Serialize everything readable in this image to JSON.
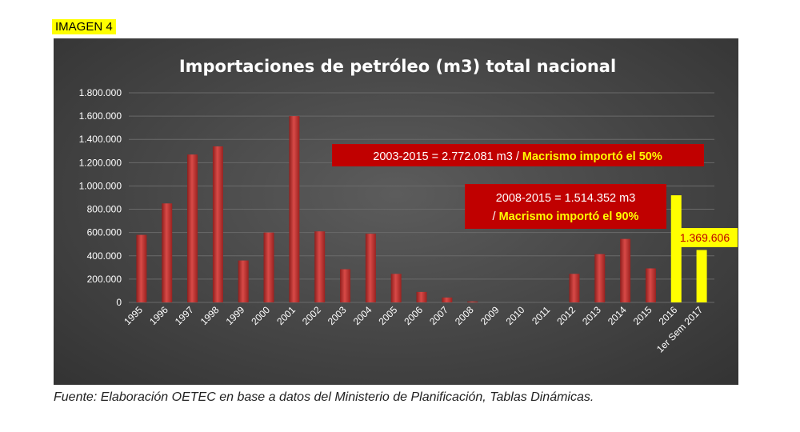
{
  "figure_label": "IMAGEN 4",
  "source": "Fuente: Elaboración OETEC en base a datos del Ministerio de Planificación, Tablas Dinámicas.",
  "colors": {
    "bar": "#c0302e",
    "bar_highlight": "#ffff00",
    "annotation_bg": "#c00000",
    "annotation_text": "#ffffff",
    "annotation_accent": "#ffff00",
    "panel_bg": "#454545",
    "gridline": "#6a6a6a",
    "tick_text": "#ffffff"
  },
  "chart_data": {
    "type": "bar",
    "title": "Importaciones de petróleo (m3) total nacional",
    "xlabel": "",
    "ylabel": "",
    "ylim": [
      0,
      1800000
    ],
    "yticks": [
      0,
      200000,
      400000,
      600000,
      800000,
      1000000,
      1200000,
      1400000,
      1600000,
      1800000
    ],
    "ytick_labels": [
      "0",
      "200.000",
      "400.000",
      "600.000",
      "800.000",
      "1.000.000",
      "1.200.000",
      "1.400.000",
      "1.600.000",
      "1.800.000"
    ],
    "grid": true,
    "categories": [
      "1995",
      "1996",
      "1997",
      "1998",
      "1999",
      "2000",
      "2001",
      "2002",
      "2003",
      "2004",
      "2005",
      "2006",
      "2007",
      "2008",
      "2009",
      "2010",
      "2011",
      "2012",
      "2013",
      "2014",
      "2015",
      "2016",
      "1er Sem 2017"
    ],
    "values": [
      580000,
      850000,
      1270000,
      1340000,
      360000,
      600000,
      1600000,
      610000,
      285000,
      590000,
      245000,
      90000,
      42000,
      8000,
      0,
      0,
      0,
      245000,
      415000,
      545000,
      292000,
      920000,
      450000
    ],
    "highlighted_categories": [
      "2016",
      "1er Sem 2017"
    ],
    "annotations": [
      {
        "text_main": "2003-2015 = 2.772.081 m3 / ",
        "text_accent": "Macrismo  importó el 50%"
      },
      {
        "line1": "2008-2015 = 1.514.352 m3",
        "line2_prefix": "/ ",
        "line2_accent": "Macrismo  importó el 90%"
      },
      {
        "text": "1.369.606"
      }
    ]
  }
}
